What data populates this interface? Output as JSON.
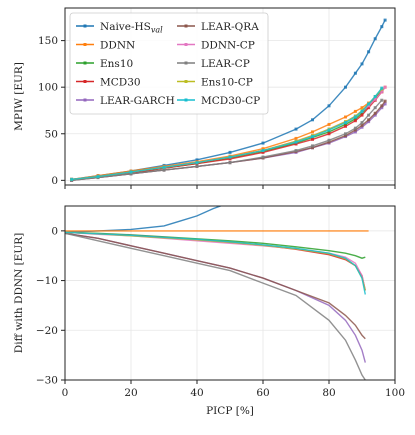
{
  "chart_data": [
    {
      "type": "line",
      "xlim": [
        0,
        100
      ],
      "ylim": [
        -5,
        185
      ],
      "ylabel": "MPIW [EUR]",
      "xlabel": "",
      "yticks": [
        0,
        50,
        100,
        150
      ],
      "grid": true,
      "legend_position": "top-left",
      "series": [
        {
          "name": "Naive-HS",
          "name_sub": "val",
          "color": "#1f77b4",
          "x": [
            2,
            10,
            20,
            30,
            40,
            50,
            60,
            70,
            75,
            80,
            85,
            88,
            90,
            92,
            94,
            96,
            97
          ],
          "y": [
            1,
            5,
            10,
            16,
            22,
            30,
            40,
            55,
            65,
            80,
            100,
            115,
            125,
            138,
            152,
            165,
            172
          ]
        },
        {
          "name": "DDNN",
          "color": "#ff7f0e",
          "x": [
            2,
            10,
            20,
            30,
            40,
            50,
            60,
            70,
            75,
            80,
            85,
            88,
            90,
            92,
            94,
            96,
            97
          ],
          "y": [
            1,
            5,
            10,
            15,
            20,
            26,
            34,
            45,
            52,
            60,
            68,
            74,
            78,
            83,
            88,
            95,
            100
          ]
        },
        {
          "name": "Ens10",
          "color": "#2ca02c",
          "x": [
            2,
            10,
            20,
            30,
            40,
            50,
            60,
            70,
            75,
            80,
            85,
            88,
            90,
            92,
            94,
            96
          ],
          "y": [
            1,
            4,
            8,
            13,
            18,
            24,
            31,
            40,
            46,
            52,
            60,
            66,
            72,
            80,
            88,
            96
          ]
        },
        {
          "name": "MCD30",
          "color": "#d62728",
          "x": [
            2,
            10,
            20,
            30,
            40,
            50,
            60,
            70,
            75,
            80,
            85,
            88,
            90,
            92,
            94,
            96
          ],
          "y": [
            1,
            4,
            8,
            13,
            18,
            23,
            30,
            39,
            44,
            50,
            58,
            64,
            70,
            78,
            86,
            95
          ]
        },
        {
          "name": "LEAR-GARCH",
          "color": "#9467bd",
          "x": [
            2,
            10,
            20,
            30,
            40,
            50,
            60,
            70,
            75,
            80,
            85,
            88,
            90,
            92,
            94,
            96,
            97
          ],
          "y": [
            0,
            3,
            7,
            11,
            15,
            19,
            24,
            30,
            35,
            40,
            47,
            52,
            57,
            63,
            70,
            78,
            82
          ]
        },
        {
          "name": "LEAR-QRA",
          "color": "#8c564b",
          "x": [
            2,
            10,
            20,
            30,
            40,
            50,
            60,
            70,
            75,
            80,
            85,
            88,
            90,
            92,
            94,
            96,
            97
          ],
          "y": [
            0,
            3,
            7,
            11,
            15,
            19,
            24,
            31,
            35,
            41,
            48,
            54,
            59,
            65,
            72,
            80,
            85
          ]
        },
        {
          "name": "DDNN-CP",
          "color": "#e377c2",
          "x": [
            2,
            10,
            20,
            30,
            40,
            50,
            60,
            70,
            75,
            80,
            85,
            88,
            90,
            92,
            94,
            96,
            97
          ],
          "y": [
            1,
            4,
            9,
            14,
            19,
            25,
            32,
            42,
            48,
            55,
            63,
            69,
            74,
            80,
            87,
            95,
            100
          ]
        },
        {
          "name": "LEAR-CP",
          "color": "#7f7f7f",
          "x": [
            2,
            10,
            20,
            30,
            40,
            50,
            60,
            70,
            75,
            80,
            85,
            88,
            90,
            92,
            94,
            96
          ],
          "y": [
            0,
            3,
            7,
            11,
            15,
            19,
            25,
            32,
            37,
            43,
            50,
            56,
            62,
            70,
            78,
            86
          ]
        },
        {
          "name": "Ens10-CP",
          "color": "#bcbd22",
          "x": [
            2,
            10,
            20,
            30,
            40,
            50,
            60,
            70,
            75,
            80,
            85,
            88,
            90,
            92,
            94,
            96
          ],
          "y": [
            1,
            4,
            9,
            14,
            19,
            25,
            32,
            42,
            48,
            55,
            63,
            69,
            75,
            82,
            90,
            98
          ]
        },
        {
          "name": "MCD30-CP",
          "color": "#17becf",
          "x": [
            2,
            10,
            20,
            30,
            40,
            50,
            60,
            70,
            75,
            80,
            85,
            88,
            90,
            92,
            94,
            96
          ],
          "y": [
            1,
            4,
            9,
            14,
            19,
            25,
            32,
            41,
            47,
            54,
            62,
            68,
            74,
            82,
            90,
            99
          ]
        }
      ]
    },
    {
      "type": "line",
      "xlim": [
        0,
        100
      ],
      "ylim": [
        -30,
        5
      ],
      "xlabel": "PICP [%]",
      "ylabel": "Diff with DDNN [EUR]",
      "xticks": [
        0,
        20,
        40,
        60,
        80,
        100
      ],
      "yticks": [
        0,
        -10,
        -20,
        -30
      ],
      "grid": true,
      "series": [
        {
          "name": "Naive-HS",
          "color": "#1f77b4",
          "x": [
            0,
            10,
            20,
            30,
            35,
            40,
            45,
            48
          ],
          "y": [
            -0.3,
            0,
            0.3,
            1,
            2,
            3,
            4.5,
            5.2
          ]
        },
        {
          "name": "DDNN",
          "color": "#ff7f0e",
          "x": [
            0,
            20,
            40,
            60,
            80,
            92
          ],
          "y": [
            0,
            0,
            0,
            0,
            0,
            0
          ]
        },
        {
          "name": "Ens10",
          "color": "#2ca02c",
          "x": [
            0,
            10,
            20,
            30,
            40,
            50,
            60,
            70,
            80,
            85,
            88,
            90,
            91
          ],
          "y": [
            -0.3,
            -0.5,
            -0.8,
            -1.2,
            -1.6,
            -2,
            -2.5,
            -3.2,
            -4,
            -4.5,
            -5,
            -5.5,
            -5.3
          ]
        },
        {
          "name": "MCD30",
          "color": "#d62728",
          "x": [
            0,
            10,
            20,
            30,
            40,
            50,
            60,
            70,
            80,
            85,
            88,
            90,
            91
          ],
          "y": [
            -0.3,
            -0.6,
            -0.9,
            -1.3,
            -1.8,
            -2.3,
            -2.9,
            -3.7,
            -4.8,
            -5.8,
            -7,
            -9,
            -12
          ]
        },
        {
          "name": "LEAR-GARCH",
          "color": "#9467bd",
          "x": [
            0,
            10,
            20,
            30,
            40,
            50,
            60,
            70,
            80,
            85,
            88,
            90,
            91
          ],
          "y": [
            -0.5,
            -1.5,
            -3,
            -4.5,
            -6,
            -7.5,
            -9.5,
            -12,
            -15,
            -18,
            -21,
            -24,
            -26.5
          ]
        },
        {
          "name": "LEAR-QRA",
          "color": "#8c564b",
          "x": [
            0,
            10,
            20,
            30,
            40,
            50,
            60,
            70,
            80,
            85,
            88,
            90,
            91
          ],
          "y": [
            -0.5,
            -1.5,
            -3,
            -4.5,
            -6,
            -7.5,
            -9.5,
            -12,
            -14.5,
            -17,
            -19,
            -21,
            -21.7
          ]
        },
        {
          "name": "DDNN-CP",
          "color": "#e377c2",
          "x": [
            0,
            10,
            20,
            30,
            40,
            50,
            60,
            70,
            80,
            85,
            88,
            90,
            91
          ],
          "y": [
            -0.3,
            -0.7,
            -1,
            -1.5,
            -2,
            -2.5,
            -3,
            -3.6,
            -4.5,
            -5.3,
            -6.5,
            -9,
            -12
          ]
        },
        {
          "name": "LEAR-CP",
          "color": "#7f7f7f",
          "x": [
            0,
            10,
            20,
            30,
            40,
            50,
            60,
            70,
            80,
            85,
            88,
            90,
            91
          ],
          "y": [
            -0.5,
            -2,
            -3.5,
            -5,
            -6.5,
            -8,
            -10.5,
            -13,
            -18,
            -22,
            -26,
            -29,
            -30
          ]
        },
        {
          "name": "Ens10-CP",
          "color": "#bcbd22",
          "x": [
            0,
            10,
            20,
            30,
            40,
            50,
            60,
            70,
            80,
            85,
            88,
            90,
            91
          ],
          "y": [
            -0.3,
            -0.6,
            -1,
            -1.4,
            -1.8,
            -2.3,
            -2.9,
            -3.6,
            -4.6,
            -5.6,
            -7,
            -9.5,
            -12
          ]
        },
        {
          "name": "MCD30-CP",
          "color": "#17becf",
          "x": [
            0,
            10,
            20,
            30,
            40,
            50,
            60,
            70,
            80,
            85,
            88,
            90,
            91
          ],
          "y": [
            -0.3,
            -0.6,
            -0.9,
            -1.3,
            -1.7,
            -2.2,
            -2.8,
            -3.5,
            -4.5,
            -5.5,
            -7,
            -9.5,
            -12.8
          ]
        }
      ]
    }
  ]
}
